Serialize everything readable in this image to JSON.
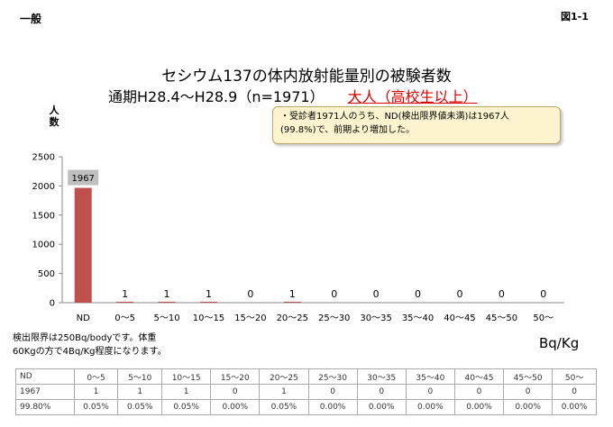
{
  "header": {
    "category": "一般",
    "figure_id": "図1-1"
  },
  "title": {
    "line1": "セシウム137の体内放射能量別の被験者数",
    "line2_main": "通期H28.4〜H28.9（n=1971）",
    "line2_highlight": "大人（高校生以上）"
  },
  "note": {
    "line1": "・受診者1971人のうち、ND(検出限界値未満)は1967人",
    "line2": "(99.8%)で、前期より増加した。"
  },
  "detection_note": {
    "line1": "検出限界は250Bq/bodyです。体重",
    "line2": "60Kgの方で4Bq/Kg程度になります。"
  },
  "colors": {
    "bar": "#c0504d",
    "label_box": "#bfbfbf",
    "highlight": "#e00000"
  },
  "chart_data": {
    "type": "bar",
    "ylabel": "人数",
    "xlabel": "Bq/Kg",
    "ylim": [
      0,
      2500
    ],
    "yticks": [
      "0",
      "500",
      "1000",
      "1500",
      "2000",
      "2500"
    ],
    "grid": false,
    "categories": [
      "ND",
      "0〜5",
      "5〜10",
      "10〜15",
      "15〜20",
      "20〜25",
      "25〜30",
      "30〜35",
      "35〜40",
      "40〜45",
      "45〜50",
      "50〜"
    ],
    "values": [
      1967,
      1,
      1,
      1,
      0,
      1,
      0,
      0,
      0,
      0,
      0,
      0
    ],
    "value_labels": [
      "1967",
      "1",
      "1",
      "1",
      "0",
      "1",
      "0",
      "0",
      "0",
      "0",
      "0",
      "0"
    ]
  },
  "table": {
    "rows": [
      [
        "ND",
        "0〜5",
        "5〜10",
        "10〜15",
        "15〜20",
        "20〜25",
        "25〜30",
        "30〜35",
        "35〜40",
        "40〜45",
        "45〜50",
        "50〜"
      ],
      [
        "1967",
        "1",
        "1",
        "1",
        "0",
        "1",
        "0",
        "0",
        "0",
        "0",
        "0",
        "0"
      ],
      [
        "99.80%",
        "0.05%",
        "0.05%",
        "0.05%",
        "0.00%",
        "0.05%",
        "0.00%",
        "0.00%",
        "0.00%",
        "0.00%",
        "0.00%",
        "0.00%"
      ]
    ]
  }
}
